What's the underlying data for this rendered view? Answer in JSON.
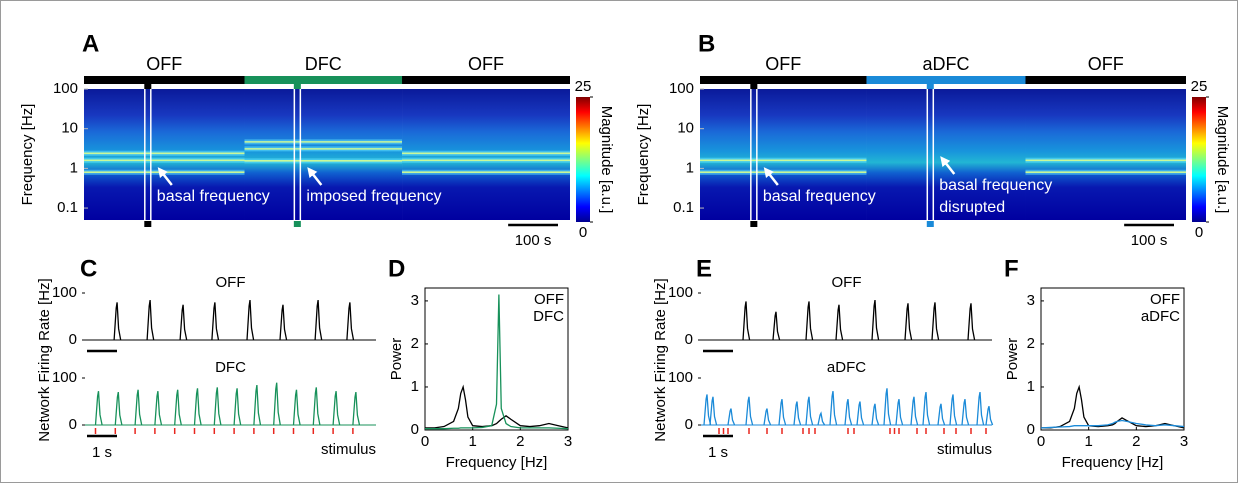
{
  "chart_data": [
    {
      "type": "spectrogram",
      "panel": "A",
      "ylabel": "Frequency [Hz]",
      "log": true,
      "ylim": [
        0.05,
        100
      ],
      "yticks": [
        100,
        10,
        1,
        0.1
      ],
      "xlim": [
        0,
        975
      ],
      "segments": [
        {
          "label": "OFF",
          "color": "#000000",
          "end": 322,
          "ridges": [
            0.8,
            1.6,
            2.4
          ]
        },
        {
          "label": "DFC",
          "color": "#17915a",
          "end": 638,
          "ridges": [
            1.55,
            3.1,
            4.65
          ]
        },
        {
          "label": "OFF",
          "color": "#000000",
          "end": 975,
          "ridges": [
            0.8,
            1.6,
            2.4
          ]
        }
      ],
      "windows": [
        {
          "time": 128,
          "color": "#000000",
          "annotation": [
            "basal frequency"
          ]
        },
        {
          "time": 428,
          "color": "#17915a",
          "annotation": [
            "imposed frequency"
          ]
        }
      ],
      "scalebar": {
        "value": 100,
        "label": "100 s"
      },
      "colorbar": {
        "label": "Magnitude [a.u.]",
        "clim": [
          0,
          25
        ],
        "ticks": [
          0,
          25
        ]
      }
    },
    {
      "type": "spectrogram",
      "panel": "B",
      "ylabel": "Frequency [Hz]",
      "log": true,
      "ylim": [
        0.05,
        100
      ],
      "yticks": [
        100,
        10,
        1,
        0.1
      ],
      "xlim": [
        0,
        975
      ],
      "segments": [
        {
          "label": "OFF",
          "color": "#000000",
          "end": 334,
          "ridges": [
            0.8,
            1.6
          ]
        },
        {
          "label": "aDFC",
          "color": "#1a8ad8",
          "end": 653,
          "ridges": []
        },
        {
          "label": "OFF",
          "color": "#000000",
          "end": 975,
          "ridges": [
            0.8,
            1.6
          ]
        }
      ],
      "windows": [
        {
          "time": 108,
          "color": "#000000",
          "annotation": [
            "basal frequency"
          ]
        },
        {
          "time": 462,
          "color": "#1a8ad8",
          "annotation": [
            "basal frequency",
            "disrupted"
          ]
        }
      ],
      "scalebar": {
        "value": 100,
        "label": "100 s"
      },
      "colorbar": {
        "label": "Magnitude [a.u.]",
        "clim": [
          0,
          25
        ],
        "ticks": [
          0,
          25
        ]
      }
    },
    {
      "type": "spikes",
      "panel": "C",
      "ylabel": "Network Firing Rate [Hz]",
      "xlim": [
        0,
        9.7
      ],
      "ylim": [
        0,
        100
      ],
      "yticks": [
        0,
        100
      ],
      "scalebar": {
        "value": 1,
        "label": "1 s"
      },
      "stimulus_label": "stimulus",
      "stimulus_color": "#e8261e",
      "traces": [
        {
          "name": "OFF",
          "color": "#000000",
          "times": [
            1.07,
            2.17,
            3.27,
            4.33,
            5.5,
            6.6,
            7.77,
            8.83
          ],
          "heights": [
            80,
            85,
            75,
            80,
            85,
            75,
            85,
            80
          ]
        },
        {
          "name": "DFC",
          "color": "#17915a",
          "times": [
            0.45,
            1.11,
            1.77,
            2.43,
            3.09,
            3.75,
            4.41,
            5.07,
            5.73,
            6.39,
            7.05,
            7.71,
            8.37,
            9.03
          ],
          "heights": [
            72,
            70,
            75,
            72,
            75,
            78,
            80,
            78,
            85,
            90,
            75,
            80,
            72,
            70
          ],
          "stimulus_times": [
            0.35,
            1.01,
            1.67,
            2.33,
            2.99,
            3.65,
            4.31,
            4.97,
            5.63,
            6.29,
            6.95,
            7.61,
            8.27,
            8.93
          ]
        }
      ]
    },
    {
      "type": "line",
      "panel": "D",
      "xlabel": "Frequency [Hz]",
      "ylabel": "Power",
      "xlim": [
        0,
        3
      ],
      "ylim": [
        0,
        3.3
      ],
      "xticks": [
        0,
        1,
        2,
        3
      ],
      "yticks": [
        0,
        1,
        2,
        3
      ],
      "x": [
        0,
        0.2,
        0.4,
        0.6,
        0.7,
        0.75,
        0.8,
        0.85,
        0.9,
        1.0,
        1.2,
        1.4,
        1.5,
        1.55,
        1.6,
        1.7,
        1.8,
        2.0,
        2.2,
        2.4,
        2.6,
        2.8,
        3.0
      ],
      "series": [
        {
          "name": "OFF",
          "color": "#000000",
          "values": [
            0.05,
            0.05,
            0.08,
            0.2,
            0.5,
            0.85,
            1.0,
            0.7,
            0.3,
            0.1,
            0.08,
            0.1,
            0.15,
            0.2,
            0.25,
            0.33,
            0.25,
            0.1,
            0.08,
            0.1,
            0.15,
            0.1,
            0.05
          ]
        },
        {
          "name": "DFC",
          "color": "#17915a",
          "values": [
            0.03,
            0.03,
            0.03,
            0.04,
            0.04,
            0.05,
            0.05,
            0.05,
            0.05,
            0.05,
            0.06,
            0.1,
            0.6,
            3.15,
            0.5,
            0.15,
            0.08,
            0.05,
            0.05,
            0.05,
            0.05,
            0.04,
            0.03
          ]
        }
      ]
    },
    {
      "type": "spikes",
      "panel": "E",
      "ylabel": "Network Firing Rate [Hz]",
      "xlim": [
        0,
        9.7
      ],
      "ylim": [
        0,
        100
      ],
      "yticks": [
        0,
        100
      ],
      "scalebar": {
        "value": 1,
        "label": "1 s"
      },
      "stimulus_label": "stimulus",
      "stimulus_color": "#e8261e",
      "traces": [
        {
          "name": "OFF",
          "color": "#000000",
          "times": [
            1.5,
            2.5,
            3.6,
            4.6,
            5.8,
            6.9,
            7.8,
            9.0
          ],
          "heights": [
            82,
            60,
            82,
            75,
            85,
            78,
            80,
            78
          ]
        },
        {
          "name": "aDFC",
          "color": "#1a8ad8",
          "times": [
            0.2,
            0.4,
            1.0,
            1.6,
            2.2,
            2.7,
            3.2,
            3.6,
            4.0,
            4.4,
            4.9,
            5.3,
            5.8,
            6.2,
            6.6,
            7.1,
            7.5,
            8.0,
            8.4,
            8.8,
            9.3,
            9.6
          ],
          "heights": [
            65,
            60,
            35,
            60,
            35,
            55,
            50,
            60,
            25,
            72,
            55,
            50,
            45,
            78,
            55,
            60,
            70,
            45,
            65,
            55,
            70,
            40
          ],
          "stimulus_times": [
            0.6,
            0.75,
            0.9,
            1.6,
            2.2,
            2.7,
            3.4,
            3.6,
            3.8,
            4.9,
            5.1,
            6.3,
            6.45,
            6.6,
            7.2,
            7.5,
            8.1,
            8.5,
            9.0,
            9.5
          ]
        }
      ]
    },
    {
      "type": "line",
      "panel": "F",
      "xlabel": "Frequency [Hz]",
      "ylabel": "Power",
      "xlim": [
        0,
        3
      ],
      "ylim": [
        0,
        3.3
      ],
      "xticks": [
        0,
        1,
        2,
        3
      ],
      "yticks": [
        0,
        1,
        2,
        3
      ],
      "x": [
        0,
        0.2,
        0.4,
        0.6,
        0.7,
        0.75,
        0.8,
        0.85,
        0.9,
        1.0,
        1.2,
        1.4,
        1.5,
        1.55,
        1.6,
        1.7,
        1.8,
        2.0,
        2.2,
        2.4,
        2.6,
        2.8,
        3.0
      ],
      "series": [
        {
          "name": "OFF",
          "color": "#000000",
          "values": [
            0.05,
            0.05,
            0.08,
            0.2,
            0.5,
            0.85,
            1.0,
            0.7,
            0.3,
            0.1,
            0.08,
            0.1,
            0.12,
            0.15,
            0.2,
            0.28,
            0.22,
            0.1,
            0.08,
            0.1,
            0.15,
            0.1,
            0.05
          ]
        },
        {
          "name": "aDFC",
          "color": "#1a8ad8",
          "values": [
            0.05,
            0.06,
            0.07,
            0.08,
            0.1,
            0.1,
            0.1,
            0.1,
            0.1,
            0.1,
            0.1,
            0.12,
            0.15,
            0.18,
            0.2,
            0.22,
            0.2,
            0.15,
            0.12,
            0.1,
            0.12,
            0.1,
            0.08
          ]
        }
      ]
    }
  ]
}
